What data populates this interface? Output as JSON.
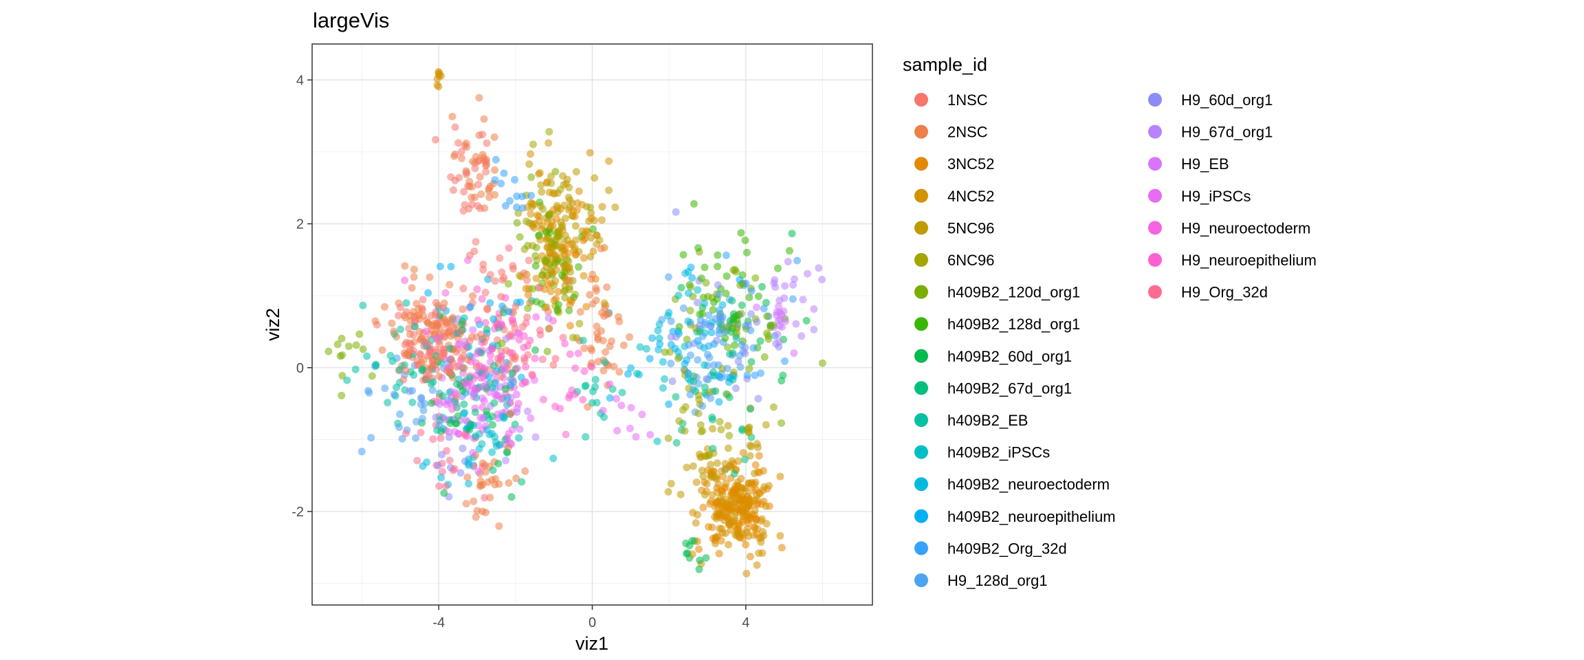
{
  "chart_data": {
    "type": "scatter",
    "title": "largeVis",
    "xlabel": "viz1",
    "ylabel": "viz2",
    "xlim": [
      -7.3,
      7.3
    ],
    "ylim": [
      -3.3,
      4.5
    ],
    "x_ticks": [
      -4,
      0,
      4
    ],
    "x_tick_labels": [
      "-4",
      "0",
      "4"
    ],
    "y_ticks": [
      -2,
      0,
      2,
      4
    ],
    "y_tick_labels": [
      "-2",
      "0",
      "2",
      "4"
    ],
    "grid": true,
    "point_alpha": 0.55,
    "legend_title": "sample_id",
    "legend_position": "right",
    "series": [
      {
        "name": "1NSC",
        "color": "#F8766D",
        "clusters": [
          [
            -4.2,
            0.3,
            0.9,
            0.55,
            90
          ],
          [
            -2.4,
            0.6,
            1.0,
            0.8,
            60
          ],
          [
            -3.2,
            2.6,
            0.6,
            0.7,
            30
          ]
        ]
      },
      {
        "name": "2NSC",
        "color": "#EF7F49",
        "clusters": [
          [
            -4.3,
            0.5,
            0.9,
            0.55,
            90
          ],
          [
            -3.0,
            2.8,
            0.5,
            0.6,
            35
          ],
          [
            0.2,
            0.4,
            0.5,
            0.8,
            45
          ],
          [
            -2.8,
            -1.6,
            0.6,
            0.5,
            30
          ]
        ]
      },
      {
        "name": "3NC52",
        "color": "#E38900",
        "clusters": [
          [
            3.8,
            -1.9,
            0.8,
            0.5,
            120
          ],
          [
            -0.8,
            1.6,
            0.8,
            0.7,
            50
          ]
        ]
      },
      {
        "name": "4NC52",
        "color": "#D39200",
        "clusters": [
          [
            3.7,
            -2.0,
            0.8,
            0.5,
            130
          ],
          [
            -0.9,
            1.9,
            0.9,
            0.8,
            70
          ],
          [
            -4.0,
            4.0,
            0.12,
            0.12,
            8
          ]
        ]
      },
      {
        "name": "5NC96",
        "color": "#C09B00",
        "clusters": [
          [
            -0.8,
            2.0,
            0.8,
            0.8,
            60
          ],
          [
            3.3,
            -1.3,
            0.9,
            0.6,
            40
          ]
        ]
      },
      {
        "name": "6NC96",
        "color": "#A3A500",
        "clusters": [
          [
            -1.0,
            1.6,
            0.9,
            0.9,
            50
          ],
          [
            2.8,
            -0.5,
            1.0,
            0.9,
            30
          ]
        ]
      },
      {
        "name": "h409B2_120d_org1",
        "color": "#7CAE00",
        "clusters": [
          [
            3.6,
            0.8,
            1.3,
            0.9,
            40
          ],
          [
            -1.2,
            1.2,
            0.8,
            0.9,
            25
          ],
          [
            -6.4,
            0.1,
            0.5,
            0.4,
            12
          ]
        ]
      },
      {
        "name": "h409B2_128d_org1",
        "color": "#39B600",
        "clusters": [
          [
            3.6,
            1.1,
            1.2,
            0.8,
            40
          ],
          [
            -0.9,
            1.3,
            0.9,
            0.8,
            20
          ]
        ]
      },
      {
        "name": "h409B2_60d_org1",
        "color": "#00BB4E",
        "clusters": [
          [
            -3.0,
            -0.5,
            1.2,
            1.0,
            35
          ],
          [
            2.6,
            -2.6,
            0.3,
            0.2,
            10
          ],
          [
            4.2,
            0.6,
            1.0,
            0.8,
            20
          ]
        ]
      },
      {
        "name": "h409B2_67d_org1",
        "color": "#00BF7D",
        "clusters": [
          [
            -3.2,
            -0.3,
            1.3,
            1.0,
            35
          ],
          [
            3.3,
            -0.6,
            1.2,
            0.9,
            25
          ]
        ]
      },
      {
        "name": "h409B2_EB",
        "color": "#00C1A3",
        "clusters": [
          [
            -4.8,
            0.0,
            1.2,
            0.7,
            30
          ],
          [
            0.0,
            -0.3,
            0.7,
            0.6,
            15
          ]
        ]
      },
      {
        "name": "h409B2_iPSCs",
        "color": "#00BFC4",
        "clusters": [
          [
            -2.6,
            -0.6,
            1.0,
            0.9,
            30
          ],
          [
            2.4,
            0.2,
            1.2,
            0.9,
            20
          ]
        ]
      },
      {
        "name": "h409B2_neuroectoderm",
        "color": "#00BAE0",
        "clusters": [
          [
            -3.4,
            -0.9,
            1.0,
            0.8,
            25
          ],
          [
            2.2,
            0.6,
            1.2,
            0.8,
            20
          ]
        ]
      },
      {
        "name": "h409B2_neuroepithelium",
        "color": "#00B0F6",
        "clusters": [
          [
            -2.8,
            0.5,
            1.2,
            0.9,
            25
          ],
          [
            2.6,
            0.2,
            1.3,
            0.8,
            25
          ]
        ]
      },
      {
        "name": "h409B2_Org_32d",
        "color": "#35A2FF",
        "clusters": [
          [
            -2.2,
            2.5,
            0.6,
            0.4,
            12
          ],
          [
            3.8,
            0.4,
            1.3,
            0.8,
            30
          ]
        ]
      },
      {
        "name": "H9_128d_org1",
        "color": "#4CA3F3",
        "clusters": [
          [
            3.2,
            0.2,
            1.3,
            0.9,
            45
          ],
          [
            -4.8,
            -0.6,
            1.0,
            0.7,
            25
          ]
        ]
      },
      {
        "name": "H9_60d_org1",
        "color": "#8C8CF6",
        "clusters": [
          [
            3.4,
            0.4,
            1.3,
            0.9,
            25
          ],
          [
            -3.6,
            -0.8,
            1.0,
            0.8,
            20
          ]
        ]
      },
      {
        "name": "H9_67d_org1",
        "color": "#B983FF",
        "clusters": [
          [
            5.2,
            1.0,
            0.7,
            0.5,
            25
          ],
          [
            -2.6,
            -0.2,
            1.0,
            0.9,
            20
          ]
        ]
      },
      {
        "name": "H9_EB",
        "color": "#D874FD",
        "clusters": [
          [
            -3.3,
            -0.6,
            1.0,
            0.8,
            30
          ],
          [
            5.0,
            0.6,
            0.6,
            0.5,
            10
          ]
        ]
      },
      {
        "name": "H9_iPSCs",
        "color": "#E76BF3",
        "clusters": [
          [
            -2.6,
            -0.4,
            1.0,
            0.8,
            35
          ],
          [
            0.8,
            -0.5,
            0.5,
            0.4,
            10
          ]
        ]
      },
      {
        "name": "H9_neuroectoderm",
        "color": "#F564E3",
        "clusters": [
          [
            -3.1,
            0.0,
            1.1,
            0.9,
            40
          ]
        ]
      },
      {
        "name": "H9_neuroepithelium",
        "color": "#FD61D1",
        "clusters": [
          [
            -2.4,
            0.3,
            1.0,
            0.8,
            40
          ],
          [
            -0.6,
            -0.2,
            0.6,
            0.5,
            15
          ]
        ]
      },
      {
        "name": "H9_Org_32d",
        "color": "#FF6C91",
        "clusters": [
          [
            -3.8,
            -1.2,
            0.9,
            0.7,
            25
          ],
          [
            -1.6,
            0.2,
            0.8,
            0.7,
            15
          ]
        ]
      }
    ]
  }
}
